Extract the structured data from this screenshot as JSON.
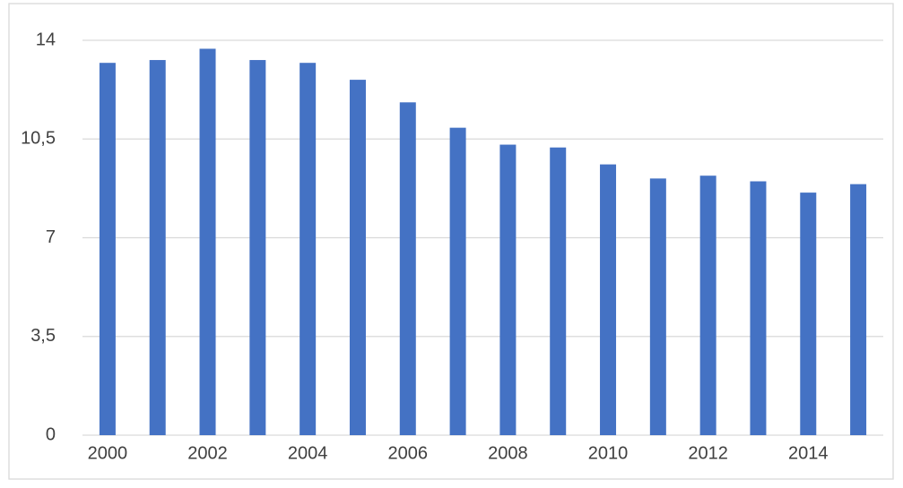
{
  "chart_data": {
    "type": "bar",
    "categories": [
      "2000",
      null,
      "2002",
      null,
      "2004",
      null,
      "2006",
      null,
      "2008",
      null,
      "2010",
      null,
      "2012",
      null,
      "2014",
      null
    ],
    "values": [
      13.2,
      13.3,
      13.7,
      13.3,
      13.2,
      12.6,
      11.8,
      10.9,
      10.3,
      10.2,
      9.6,
      9.1,
      9.2,
      9.0,
      8.6,
      8.9
    ],
    "color": "#4472c4",
    "ylim": [
      0,
      14
    ],
    "yticks": [
      0,
      {
        "value": 3.5,
        "label": "3,5"
      },
      7,
      {
        "value": 10.5,
        "label": "10,5"
      },
      14
    ],
    "grid": true
  }
}
